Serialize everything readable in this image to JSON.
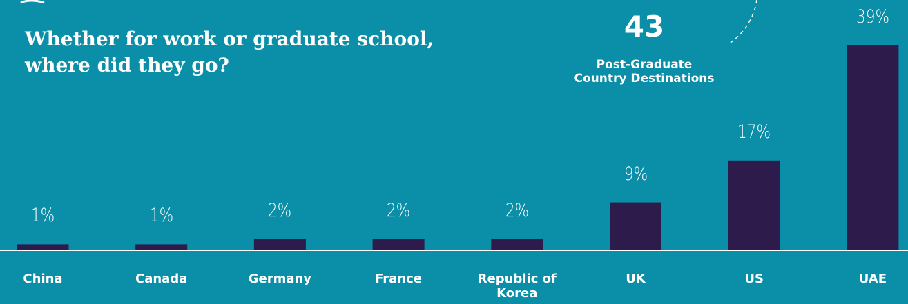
{
  "chart_data": {
    "type": "bar",
    "title": "Whether for work or graduate school, where did they go?",
    "annotation": {
      "number": "43",
      "text": "Post-Graduate Country Destinations"
    },
    "categories": [
      "China",
      "Canada",
      "Germany",
      "France",
      "Republic of Korea",
      "UK",
      "US",
      "UAE"
    ],
    "values": [
      1,
      1,
      2,
      2,
      2,
      9,
      17,
      39
    ],
    "value_labels": [
      "1%",
      "1%",
      "2%",
      "2%",
      "2%",
      "9%",
      "17%",
      "39%"
    ],
    "color": "#2d1b4b"
  }
}
